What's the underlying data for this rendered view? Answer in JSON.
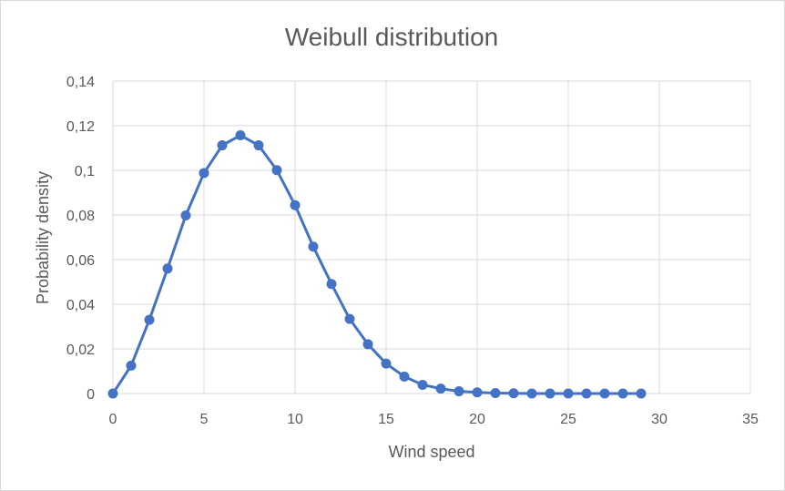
{
  "chart_data": {
    "type": "line",
    "title": "Weibull distribution",
    "xlabel": "Wind speed",
    "ylabel": "Probability density",
    "xlim": [
      0,
      35
    ],
    "ylim": [
      0,
      0.14
    ],
    "x_ticks": [
      0,
      5,
      10,
      15,
      20,
      25,
      30,
      35
    ],
    "x_tick_labels": [
      "0",
      "5",
      "10",
      "15",
      "20",
      "25",
      "30",
      "35"
    ],
    "y_ticks": [
      0,
      0.02,
      0.04,
      0.06,
      0.08,
      0.1,
      0.12,
      0.14
    ],
    "y_tick_labels": [
      "0",
      "0,02",
      "0,04",
      "0,06",
      "0,08",
      "0,1",
      "0,12",
      "0,14"
    ],
    "grid": true,
    "legend": "none",
    "series": [
      {
        "color": "#4472c4",
        "x": [
          0,
          1,
          2,
          3,
          4,
          5,
          6,
          7,
          8,
          9,
          10,
          11,
          12,
          13,
          14,
          15,
          16,
          17,
          18,
          19,
          20,
          21,
          22,
          23,
          24,
          25,
          26,
          27,
          28,
          29
        ],
        "y": [
          0,
          0.0125,
          0.033,
          0.056,
          0.0798,
          0.0988,
          0.1112,
          0.1157,
          0.1112,
          0.1001,
          0.0844,
          0.0658,
          0.0491,
          0.0334,
          0.0221,
          0.0134,
          0.0076,
          0.0039,
          0.0022,
          0.001,
          0.0005,
          0.0002,
          0.0001,
          0,
          0,
          0,
          0,
          0,
          0,
          0
        ]
      }
    ]
  }
}
